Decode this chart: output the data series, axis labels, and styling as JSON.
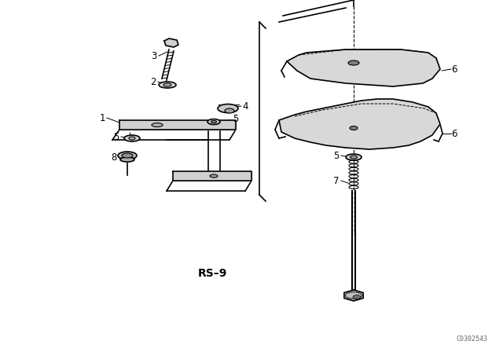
{
  "background_color": "#ffffff",
  "line_color": "#000000",
  "rs_label": "RS-9",
  "catalog_number": "C0302543",
  "fig_width": 6.4,
  "fig_height": 4.48,
  "dpi": 100
}
